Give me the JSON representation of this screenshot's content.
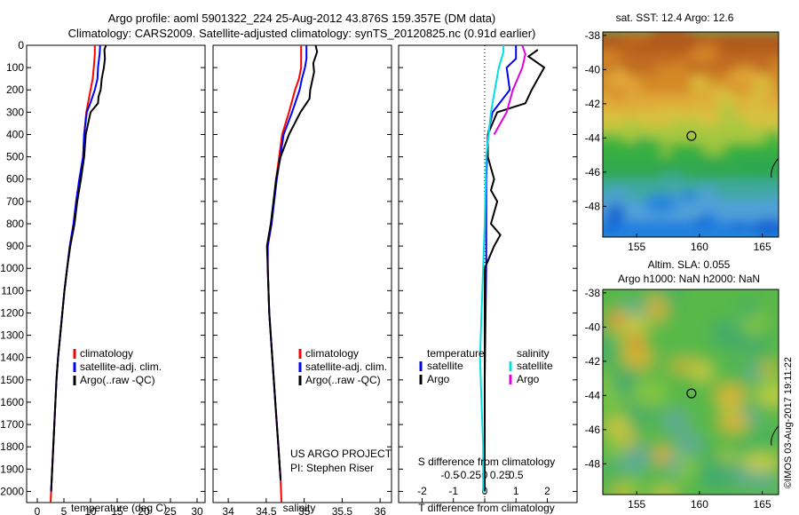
{
  "header": {
    "line1": "Argo profile: aoml 5901322_224 25-Aug-2012 43.876S 159.357E (DM data)",
    "line2": "Climatology: CARS2009. Satellite-adjusted climatology: synTS_20120825.nc (0.91d earlier)"
  },
  "credit": {
    "project": "US ARGO PROJECT",
    "pi": "PI: Stephen Riser",
    "stamp": "©IMOS 03-Aug-2017 19:11:22"
  },
  "colors": {
    "climatology": "#ff0000",
    "satellite": "#0000ff",
    "argo": "#000000",
    "salinity_satellite": "#00e0e0",
    "salinity_argo": "#e000e0"
  },
  "chart_data": [
    {
      "id": "temperature",
      "type": "line",
      "xlabel": "temperature (deg C)",
      "ylabel": "",
      "xlim": [
        -2,
        31.5
      ],
      "ylim": [
        2050,
        0
      ],
      "xticks": [
        0,
        5,
        10,
        15,
        20,
        25,
        30
      ],
      "yticks": [
        0,
        100,
        200,
        300,
        400,
        500,
        600,
        700,
        800,
        900,
        1000,
        1100,
        1200,
        1300,
        1400,
        1500,
        1600,
        1700,
        1800,
        1900,
        2000
      ],
      "legend": [
        "climatology",
        "satellite-adj. clim.",
        "Argo(..raw -QC)"
      ],
      "series": [
        {
          "name": "climatology",
          "color": "#ff0000",
          "points": [
            [
              10.8,
              0
            ],
            [
              10.8,
              40
            ],
            [
              10.6,
              100
            ],
            [
              10.4,
              150
            ],
            [
              10,
              200
            ],
            [
              9.6,
              250
            ],
            [
              9.2,
              300
            ],
            [
              8.8,
              400
            ],
            [
              8.6,
              500
            ],
            [
              7.9,
              600
            ],
            [
              7.3,
              700
            ],
            [
              6.8,
              800
            ],
            [
              6.1,
              900
            ],
            [
              5.6,
              1000
            ],
            [
              5.1,
              1100
            ],
            [
              4.7,
              1200
            ],
            [
              4.3,
              1300
            ],
            [
              3.9,
              1400
            ],
            [
              3.6,
              1500
            ],
            [
              3.4,
              1600
            ],
            [
              3.2,
              1700
            ],
            [
              3.0,
              1800
            ],
            [
              2.8,
              1900
            ],
            [
              2.6,
              2000
            ],
            [
              2.5,
              2050
            ]
          ]
        },
        {
          "name": "satellite-adj. clim.",
          "color": "#0000ff",
          "points": [
            [
              11.8,
              0
            ],
            [
              11.7,
              40
            ],
            [
              11.4,
              100
            ],
            [
              11.3,
              150
            ],
            [
              10.8,
              200
            ],
            [
              10.1,
              250
            ],
            [
              9.3,
              300
            ],
            [
              8.8,
              400
            ],
            [
              8.6,
              500
            ],
            [
              7.9,
              600
            ],
            [
              7.3,
              700
            ],
            [
              6.8,
              800
            ],
            [
              6.1,
              900
            ],
            [
              5.6,
              1000
            ],
            [
              5.1,
              1100
            ],
            [
              4.7,
              1200
            ],
            [
              4.3,
              1300
            ],
            [
              3.9,
              1400
            ],
            [
              3.6,
              1500
            ],
            [
              3.4,
              1600
            ],
            [
              3.2,
              1700
            ],
            [
              3.0,
              1800
            ],
            [
              2.8,
              1900
            ],
            [
              2.6,
              2000
            ]
          ]
        },
        {
          "name": "Argo(..raw -QC)",
          "color": "#000000",
          "points": [
            [
              12.9,
              0
            ],
            [
              12.6,
              20
            ],
            [
              12.7,
              60
            ],
            [
              12.5,
              100
            ],
            [
              12.1,
              150
            ],
            [
              11.9,
              200
            ],
            [
              11.5,
              230
            ],
            [
              11.4,
              260
            ],
            [
              10,
              300
            ],
            [
              9.1,
              400
            ],
            [
              8.8,
              500
            ],
            [
              8.2,
              600
            ],
            [
              7.5,
              700
            ],
            [
              7.0,
              800
            ],
            [
              6.2,
              900
            ],
            [
              5.6,
              1000
            ],
            [
              5.1,
              1100
            ],
            [
              4.7,
              1200
            ],
            [
              4.3,
              1300
            ],
            [
              3.9,
              1400
            ],
            [
              3.6,
              1500
            ],
            [
              3.4,
              1600
            ],
            [
              3.2,
              1700
            ],
            [
              3.0,
              1800
            ],
            [
              2.8,
              1900
            ],
            [
              2.6,
              2000
            ]
          ]
        }
      ]
    },
    {
      "id": "salinity",
      "type": "line",
      "xlabel": "salinity",
      "ylabel": "",
      "xlim": [
        33.8,
        36.15
      ],
      "ylim": [
        2050,
        0
      ],
      "xticks": [
        34,
        34.5,
        35,
        35.5,
        36
      ],
      "xticklabels": [
        "34",
        "34.5",
        "35",
        "35.5",
        "36"
      ],
      "legend": [
        "climatology",
        "satellite-adj. clim.",
        "Argo(..raw -QC)"
      ],
      "series": [
        {
          "name": "climatology",
          "color": "#ff0000",
          "points": [
            [
              34.96,
              0
            ],
            [
              34.96,
              60
            ],
            [
              34.96,
              100
            ],
            [
              34.93,
              150
            ],
            [
              34.88,
              200
            ],
            [
              34.8,
              300
            ],
            [
              34.71,
              400
            ],
            [
              34.63,
              600
            ],
            [
              34.57,
              800
            ],
            [
              34.52,
              900
            ],
            [
              34.52,
              1000
            ],
            [
              34.54,
              1200
            ],
            [
              34.58,
              1400
            ],
            [
              34.62,
              1600
            ],
            [
              34.66,
              1800
            ],
            [
              34.69,
              1950
            ],
            [
              34.7,
              2050
            ]
          ]
        },
        {
          "name": "satellite-adj. clim.",
          "color": "#0000ff",
          "points": [
            [
              35.03,
              0
            ],
            [
              35.03,
              60
            ],
            [
              35.01,
              100
            ],
            [
              34.97,
              150
            ],
            [
              34.94,
              200
            ],
            [
              34.84,
              300
            ],
            [
              34.73,
              400
            ],
            [
              34.64,
              600
            ],
            [
              34.57,
              800
            ],
            [
              34.52,
              900
            ],
            [
              34.52,
              1000
            ],
            [
              34.54,
              1200
            ],
            [
              34.58,
              1400
            ],
            [
              34.62,
              1600
            ],
            [
              34.66,
              1800
            ],
            [
              34.69,
              1950
            ]
          ]
        },
        {
          "name": "Argo(..raw -QC)",
          "color": "#000000",
          "points": [
            [
              35.15,
              0
            ],
            [
              35.17,
              30
            ],
            [
              35.12,
              80
            ],
            [
              35.13,
              120
            ],
            [
              35.08,
              200
            ],
            [
              35.07,
              240
            ],
            [
              34.95,
              300
            ],
            [
              34.8,
              400
            ],
            [
              34.69,
              500
            ],
            [
              34.63,
              600
            ],
            [
              34.56,
              800
            ],
            [
              34.51,
              900
            ],
            [
              34.52,
              1000
            ],
            [
              34.54,
              1200
            ],
            [
              34.58,
              1400
            ],
            [
              34.62,
              1600
            ],
            [
              34.66,
              1800
            ],
            [
              34.69,
              1950
            ]
          ]
        }
      ]
    },
    {
      "id": "difference",
      "type": "line",
      "xlabel": "T difference from climatology",
      "xlabel_top": "S difference from climatology",
      "xlim": [
        -2.75,
        2.95
      ],
      "ylim": [
        2050,
        0
      ],
      "xticks": [
        -2,
        -1,
        0,
        1,
        2
      ],
      "top_ticks": [
        -0.5,
        -0.25,
        0,
        0.25,
        0.5
      ],
      "top_ticklabels": [
        "-0.5",
        "-0.25",
        "0",
        "0.25",
        "0.5"
      ],
      "legend_temperature": {
        "title": "temperature",
        "items": [
          "satellite",
          "Argo"
        ]
      },
      "legend_salinity": {
        "title": "salinity",
        "items": [
          "satellite",
          "Argo"
        ]
      },
      "series": [
        {
          "name": "temperature satellite",
          "color": "#0000ff",
          "points": [
            [
              1.0,
              0
            ],
            [
              1.0,
              60
            ],
            [
              0.7,
              100
            ],
            [
              0.8,
              200
            ],
            [
              0.25,
              300
            ],
            [
              0.1,
              400
            ],
            [
              0.05,
              600
            ],
            [
              0.05,
              1000
            ],
            [
              0.0,
              1500
            ],
            [
              0.0,
              2000
            ]
          ]
        },
        {
          "name": "temperature Argo",
          "color": "#000000",
          "points": [
            [
              1.7,
              20
            ],
            [
              1.4,
              50
            ],
            [
              1.9,
              100
            ],
            [
              1.5,
              200
            ],
            [
              1.3,
              260
            ],
            [
              0.4,
              300
            ],
            [
              0.1,
              400
            ],
            [
              0.1,
              500
            ],
            [
              0.3,
              600
            ],
            [
              0.2,
              650
            ],
            [
              0.4,
              700
            ],
            [
              0.2,
              800
            ],
            [
              0.5,
              850
            ],
            [
              0.3,
              900
            ],
            [
              0.0,
              1000
            ],
            [
              0.0,
              2000
            ]
          ]
        },
        {
          "name": "salinity satellite",
          "color": "#00e0e0",
          "points": [
            [
              0.6,
              0
            ],
            [
              0.6,
              30
            ],
            [
              0.45,
              100
            ],
            [
              0.2,
              300
            ],
            [
              0.05,
              500
            ],
            [
              0.0,
              800
            ],
            [
              -0.05,
              1000
            ],
            [
              -0.1,
              1200
            ],
            [
              -0.15,
              1400
            ],
            [
              -0.1,
              1600
            ],
            [
              -0.05,
              1800
            ],
            [
              -0.05,
              2000
            ]
          ]
        },
        {
          "name": "salinity Argo",
          "color": "#e000e0",
          "points": [
            [
              1.2,
              0
            ],
            [
              1.3,
              40
            ],
            [
              1.2,
              100
            ],
            [
              0.9,
              200
            ],
            [
              0.7,
              300
            ],
            [
              0.3,
              400
            ]
          ]
        }
      ]
    },
    {
      "id": "sst-map",
      "type": "heatmap",
      "title": "sat. SST: 12.4 Argo: 12.6",
      "xlim": [
        152.3,
        166.3
      ],
      "ylim": [
        -49.8,
        -37.8
      ],
      "xticks": [
        155,
        160,
        165
      ],
      "yticks": [
        -38,
        -40,
        -42,
        -44,
        -46,
        -48
      ],
      "marker": [
        159.36,
        -43.88
      ]
    },
    {
      "id": "sla-map",
      "type": "heatmap",
      "title": "Altim. SLA: 0.055",
      "subtitle": "Argo h1000: NaN h2000: NaN",
      "xlim": [
        152.3,
        166.3
      ],
      "ylim": [
        -49.8,
        -37.8
      ],
      "xticks": [
        155,
        160,
        165
      ],
      "yticks": [
        -38,
        -40,
        -42,
        -44,
        -46,
        -48
      ],
      "marker": [
        159.36,
        -43.88
      ]
    }
  ]
}
